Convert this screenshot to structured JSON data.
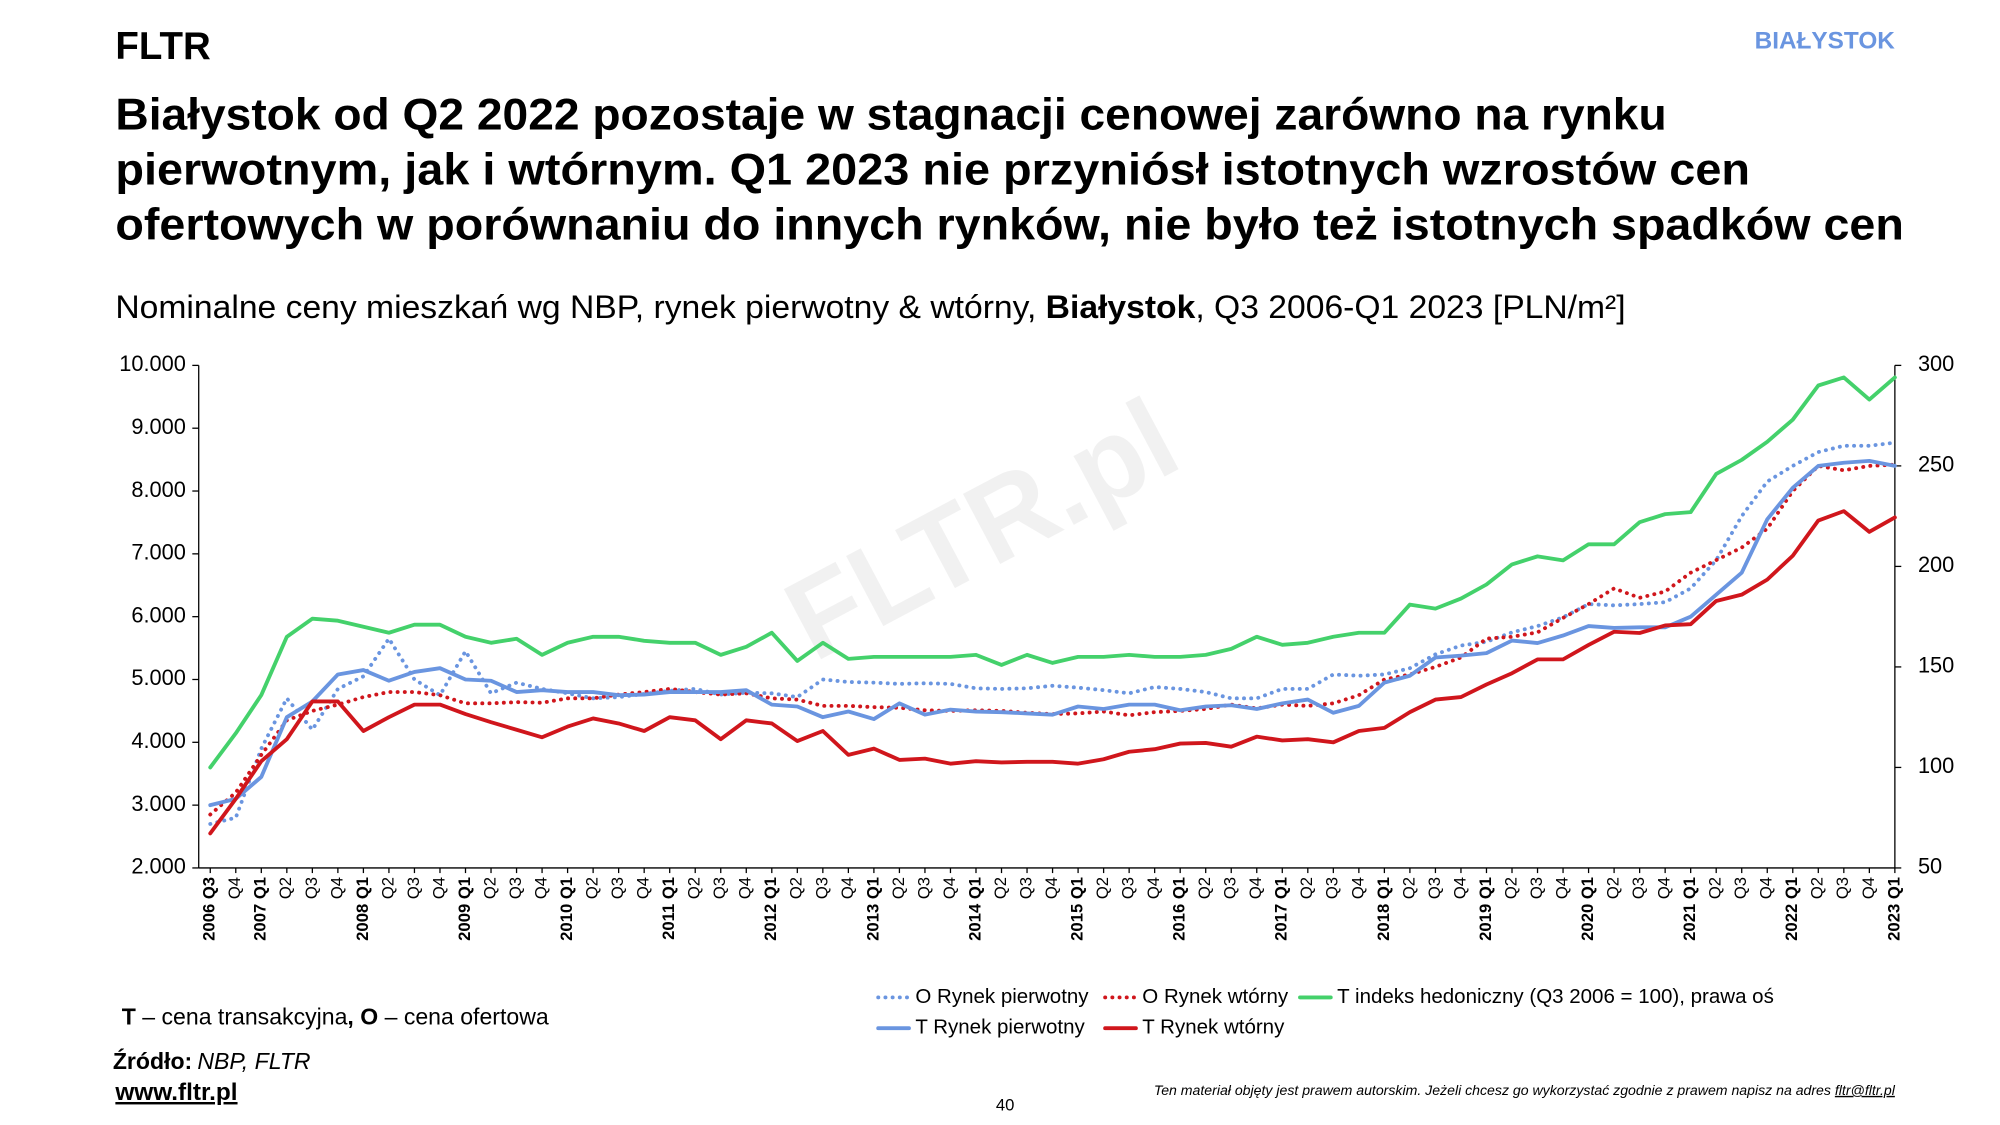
{
  "brand": "FLTR",
  "region": "BIAŁYSTOK",
  "title": [
    "Białystok od Q2 2022 pozostaje w stagnacji cenowej zarówno na rynku",
    "pierwotnym, jak i wtórnym. Q1 2023 nie przyniósł istotnych wzrostów cen",
    "ofertowych w porównaniu do innych rynków, nie było też istotnych spadków cen"
  ],
  "subtitle": [
    "Nominalne ceny mieszkań wg NBP, rynek pierwotny & wtórny, ",
    "Białystok",
    ", Q3 2006-Q1 2023 [PLN/m²]"
  ],
  "watermark": "FLTR.pl",
  "legend_note": [
    "T",
    " – cena transakcyjna",
    ", O",
    " – cena ofertowa"
  ],
  "source": {
    "label": "Źródło:",
    "text": "NBP, FLTR"
  },
  "website": "www.fltr.pl",
  "page_number": "40",
  "copyright": {
    "text": "Ten materiał objęty jest prawem autorskim. Jeżeli chcesz go wykorzystać zgodnie z prawem napisz na adres ",
    "email": "fltr@fltr.pl"
  },
  "chart_data": {
    "type": "line",
    "categories": [
      "2006 Q3",
      "Q4",
      "2007 Q1",
      "Q2",
      "Q3",
      "Q4",
      "2008 Q1",
      "Q2",
      "Q3",
      "Q4",
      "2009 Q1",
      "Q2",
      "Q3",
      "Q4",
      "2010 Q1",
      "Q2",
      "Q3",
      "Q4",
      "2011 Q1",
      "Q2",
      "Q3",
      "Q4",
      "2012 Q1",
      "Q2",
      "Q3",
      "Q4",
      "2013 Q1",
      "Q2",
      "Q3",
      "Q4",
      "2014 Q1",
      "Q2",
      "Q3",
      "Q4",
      "2015 Q1",
      "Q2",
      "Q3",
      "Q4",
      "2016 Q1",
      "Q2",
      "Q3",
      "Q4",
      "2017 Q1",
      "Q2",
      "Q3",
      "Q4",
      "2018 Q1",
      "Q2",
      "Q3",
      "Q4",
      "2019 Q1",
      "Q2",
      "Q3",
      "Q4",
      "2020 Q1",
      "Q2",
      "Q3",
      "Q4",
      "2021 Q1",
      "Q2",
      "Q3",
      "Q4",
      "2022 Q1",
      "Q2",
      "Q3",
      "Q4",
      "2023 Q1"
    ],
    "ylim": [
      2000,
      10000
    ],
    "yticks": [
      {
        "value": 2000,
        "label": "2.000"
      },
      {
        "value": 3000,
        "label": "3.000"
      },
      {
        "value": 4000,
        "label": "4.000"
      },
      {
        "value": 5000,
        "label": "5.000"
      },
      {
        "value": 6000,
        "label": "6.000"
      },
      {
        "value": 7000,
        "label": "7.000"
      },
      {
        "value": 8000,
        "label": "8.000"
      },
      {
        "value": 9000,
        "label": "9.000"
      },
      {
        "value": 10000,
        "label": "10.000"
      }
    ],
    "y2lim": [
      50,
      300
    ],
    "y2ticks": [
      50,
      100,
      150,
      200,
      250,
      300
    ],
    "grid": false,
    "series": [
      {
        "name": "O Rynek pierwotny",
        "color": "#6a95e0",
        "style": "dotted",
        "values": [
          2700,
          2800,
          3900,
          4700,
          4200,
          4850,
          5050,
          5650,
          5000,
          4750,
          5450,
          4780,
          4950,
          4850,
          4780,
          4700,
          4720,
          4770,
          4820,
          4850,
          4760,
          4790,
          4780,
          4720,
          5000,
          4960,
          4950,
          4930,
          4940,
          4930,
          4860,
          4850,
          4860,
          4900,
          4870,
          4830,
          4780,
          4880,
          4850,
          4800,
          4700,
          4700,
          4850,
          4850,
          5080,
          5060,
          5080,
          5180,
          5400,
          5540,
          5600,
          5750,
          5850,
          5990,
          6200,
          6180,
          6200,
          6230,
          6450,
          6900,
          7600,
          8150,
          8400,
          8620,
          8720,
          8720,
          8770
        ]
      },
      {
        "name": "O Rynek wtórny",
        "color": "#d0161c",
        "style": "dotted",
        "values": [
          2850,
          3200,
          3800,
          4350,
          4500,
          4600,
          4720,
          4800,
          4800,
          4750,
          4620,
          4620,
          4640,
          4630,
          4700,
          4700,
          4760,
          4800,
          4850,
          4800,
          4760,
          4780,
          4700,
          4680,
          4580,
          4580,
          4560,
          4550,
          4510,
          4500,
          4510,
          4500,
          4470,
          4450,
          4460,
          4490,
          4430,
          4480,
          4500,
          4530,
          4600,
          4540,
          4600,
          4580,
          4620,
          4750,
          5000,
          5080,
          5200,
          5350,
          5650,
          5680,
          5750,
          5980,
          6200,
          6450,
          6300,
          6400,
          6700,
          6900,
          7100,
          7400,
          8000,
          8400,
          8330,
          8400,
          8420
        ]
      },
      {
        "name": "T indeks hedoniczny (Q3 2006 = 100), prawa oś",
        "color": "#44d16b",
        "style": "solid",
        "axis": "y2",
        "values": [
          100,
          117,
          136,
          165,
          174,
          173,
          170,
          167,
          171,
          171,
          165,
          162,
          164,
          156,
          162,
          165,
          165,
          163,
          162,
          162,
          156,
          160,
          167,
          153,
          162,
          154,
          155,
          155,
          155,
          155,
          156,
          151,
          156,
          152,
          155,
          155,
          156,
          155,
          155,
          156,
          159,
          165,
          161,
          162,
          165,
          167,
          167,
          181,
          179,
          184,
          191,
          201,
          205,
          203,
          211,
          211,
          222,
          226,
          227,
          246,
          253,
          262,
          273,
          290,
          294,
          283,
          294
        ]
      },
      {
        "name": "T Rynek pierwotny",
        "color": "#6a95e0",
        "style": "solid",
        "values": [
          3000,
          3100,
          3450,
          4400,
          4650,
          5080,
          5150,
          4980,
          5120,
          5180,
          5000,
          4980,
          4800,
          4830,
          4800,
          4800,
          4750,
          4760,
          4800,
          4800,
          4800,
          4830,
          4600,
          4570,
          4400,
          4490,
          4370,
          4620,
          4440,
          4520,
          4490,
          4480,
          4460,
          4440,
          4570,
          4530,
          4600,
          4600,
          4510,
          4570,
          4590,
          4530,
          4620,
          4680,
          4470,
          4580,
          4950,
          5060,
          5350,
          5380,
          5420,
          5620,
          5580,
          5700,
          5850,
          5820,
          5830,
          5830,
          6000,
          6350,
          6700,
          7550,
          8050,
          8400,
          8450,
          8480,
          8400
        ]
      },
      {
        "name": "T Rynek wtórny",
        "color": "#d0161c",
        "style": "solid",
        "values": [
          2550,
          3100,
          3700,
          4050,
          4650,
          4650,
          4180,
          4400,
          4600,
          4600,
          4450,
          4320,
          4200,
          4080,
          4250,
          4380,
          4300,
          4180,
          4400,
          4350,
          4050,
          4350,
          4300,
          4020,
          4180,
          3800,
          3900,
          3720,
          3740,
          3660,
          3700,
          3680,
          3690,
          3690,
          3660,
          3730,
          3850,
          3890,
          3980,
          3990,
          3930,
          4090,
          4030,
          4050,
          4000,
          4180,
          4230,
          4480,
          4680,
          4720,
          4920,
          5100,
          5320,
          5320,
          5550,
          5760,
          5740,
          5860,
          5880,
          6250,
          6350,
          6590,
          6970,
          7530,
          7680,
          7350,
          7580
        ]
      }
    ]
  }
}
